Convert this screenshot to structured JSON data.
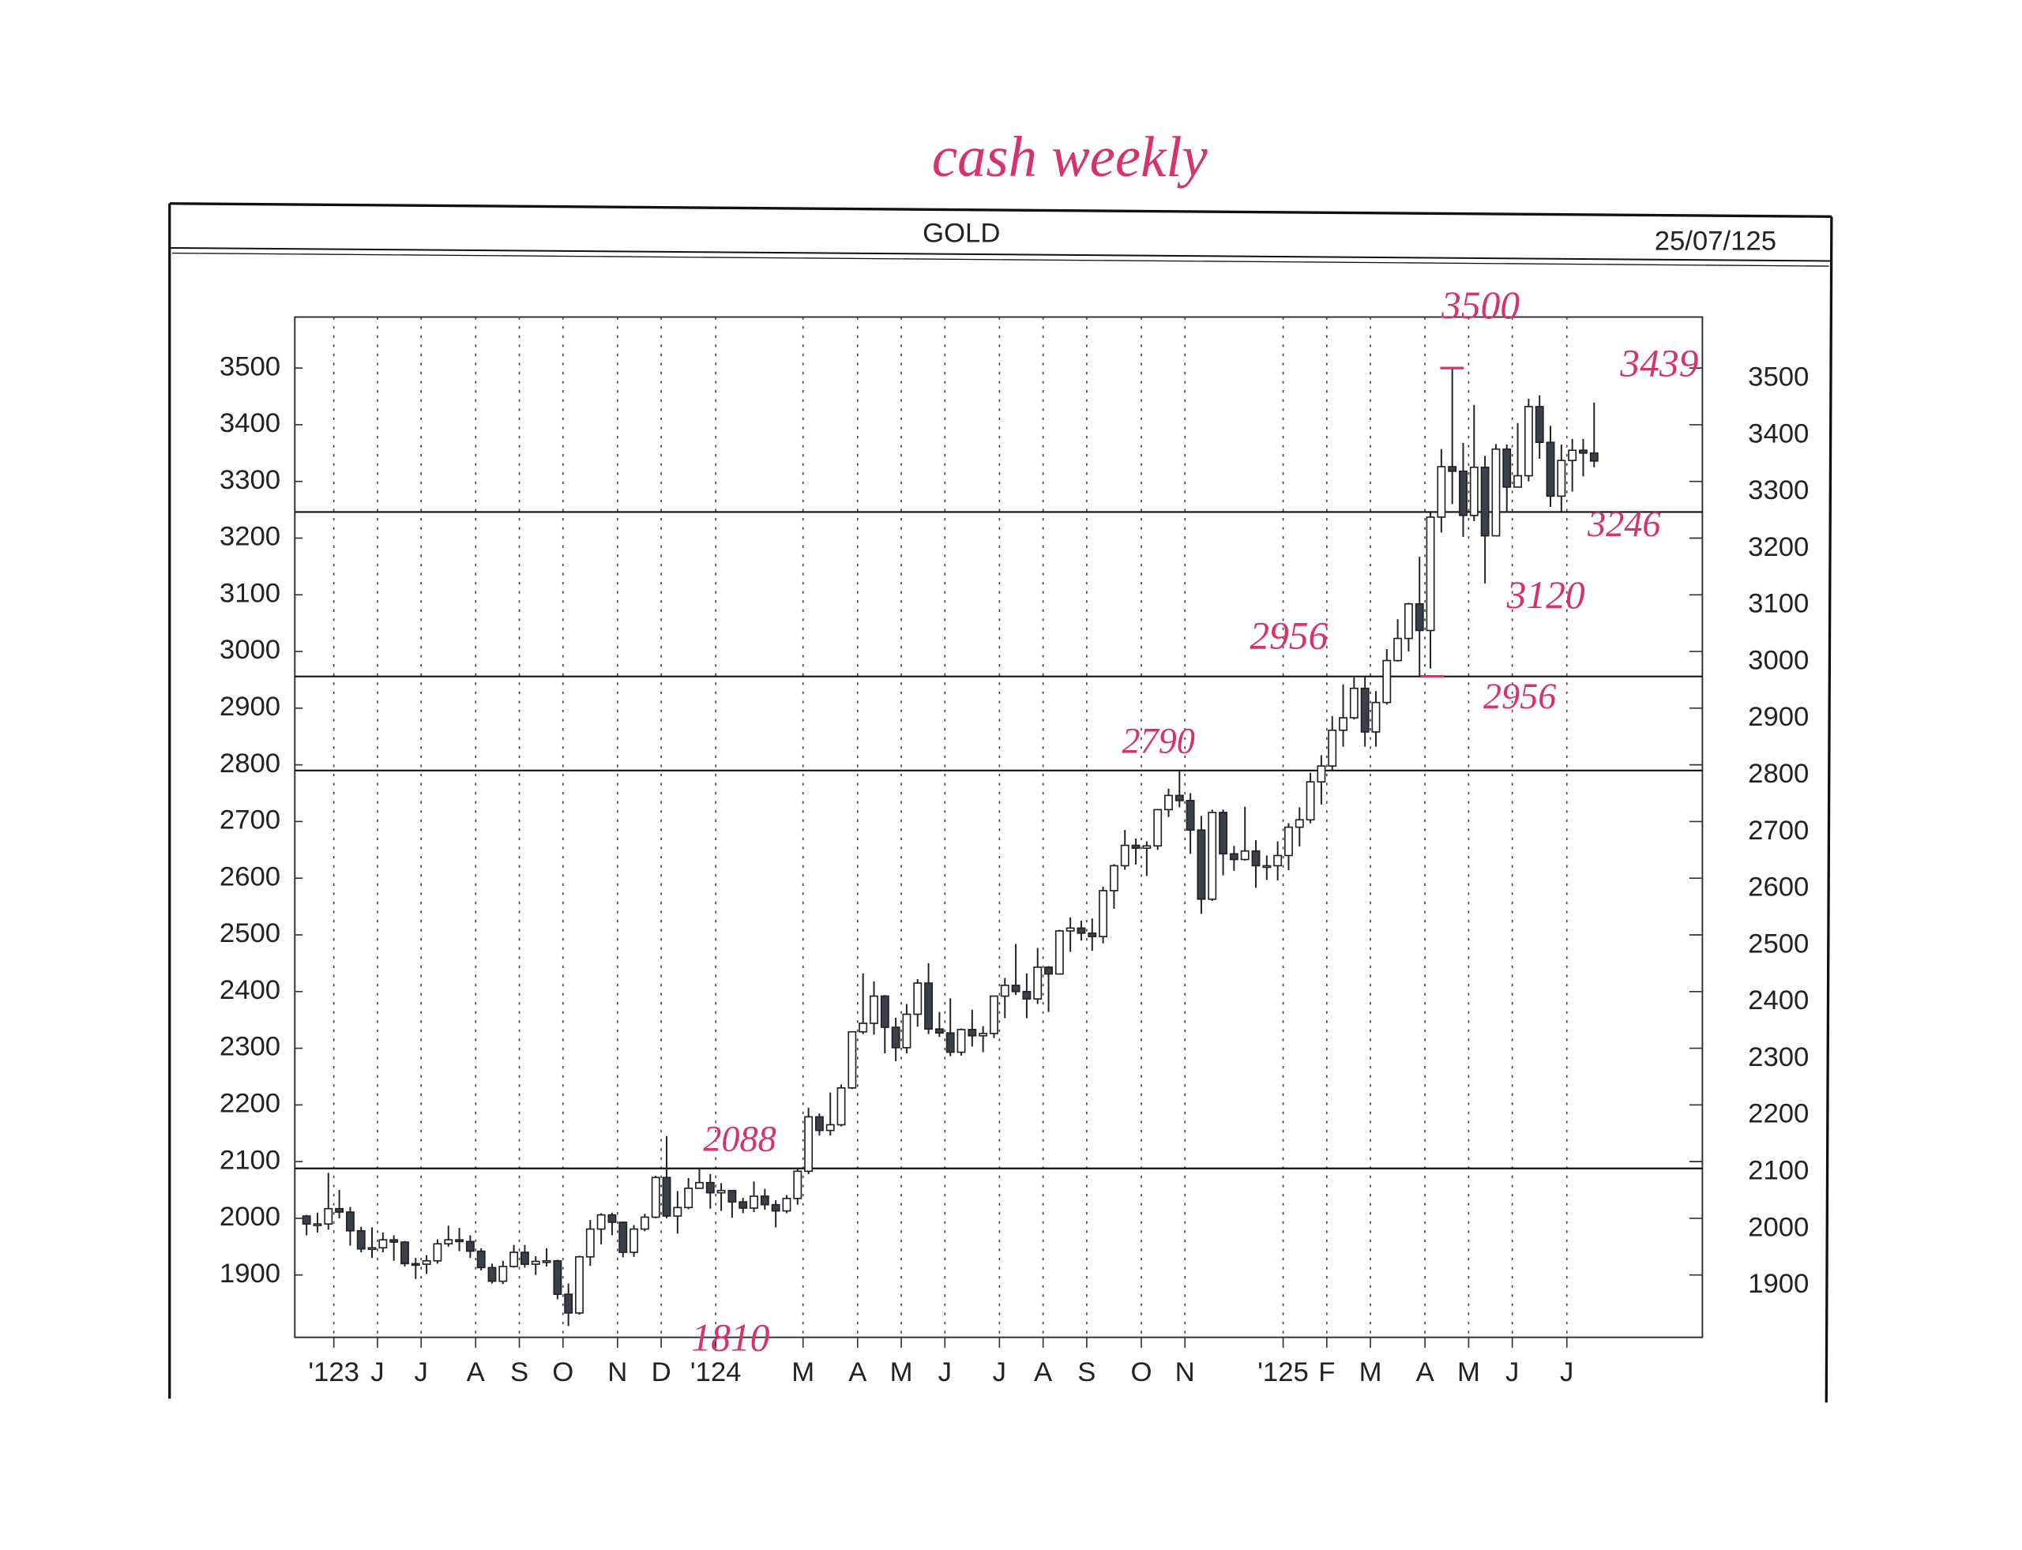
{
  "chart_data": {
    "type": "candlestick",
    "title": "GOLD",
    "date": "25/07/125",
    "note_title": "cash weekly",
    "categories": [
      null,
      null,
      "'123",
      null,
      null,
      null,
      "J",
      null,
      null,
      null,
      "J",
      null,
      null,
      null,
      null,
      "A",
      null,
      null,
      null,
      "S",
      null,
      null,
      null,
      "O",
      null,
      null,
      null,
      null,
      "N",
      null,
      null,
      null,
      "D",
      null,
      null,
      null,
      null,
      "'124",
      null,
      null,
      null,
      null,
      null,
      null,
      null,
      "M",
      null,
      null,
      null,
      null,
      "A",
      null,
      null,
      null,
      "M",
      null,
      null,
      null,
      "J",
      null,
      null,
      null,
      null,
      "J",
      null,
      null,
      null,
      "A",
      null,
      null,
      null,
      "S",
      null,
      null,
      null,
      null,
      "O",
      null,
      null,
      null,
      "N",
      null,
      null,
      null,
      null,
      null,
      null,
      null,
      null,
      "'125",
      null,
      null,
      null,
      "F",
      null,
      null,
      null,
      "M",
      null,
      null,
      null,
      null,
      "A",
      null,
      null,
      null,
      "M",
      null,
      null,
      null,
      "J",
      null,
      null,
      null,
      null,
      "J",
      null,
      null,
      null
    ],
    "open": [
      2004,
      1990,
      1990,
      2017,
      2011,
      1978,
      1946,
      1948,
      1962,
      1958,
      1920,
      1919,
      1925,
      1955,
      1962,
      1959,
      1942,
      1913,
      1889,
      1915,
      1940,
      1919,
      1924,
      1925,
      1866,
      1833,
      1932,
      1981,
      2006,
      1993,
      1940,
      1981,
      2002,
      2072,
      2004,
      2019,
      2053,
      2063,
      2045,
      2049,
      2029,
      2018,
      2039,
      2024,
      2013,
      2035,
      2083,
      2179,
      2155,
      2165,
      2230,
      2329,
      2344,
      2392,
      2337,
      2301,
      2360,
      2415,
      2334,
      2327,
      2293,
      2333,
      2322,
      2326,
      2392,
      2411,
      2400,
      2387,
      2443,
      2431,
      2507,
      2512,
      2503,
      2497,
      2578,
      2622,
      2658,
      2653,
      2657,
      2721,
      2746,
      2737,
      2685,
      2563,
      2716,
      2643,
      2633,
      2648,
      2622,
      2622,
      2640,
      2690,
      2703,
      2770,
      2798,
      2861,
      2883,
      2935,
      2858,
      2910,
      2984,
      3023,
      3084,
      3037,
      3237,
      3326,
      3318,
      3240,
      3325,
      3204,
      3357,
      3290,
      3310,
      3432,
      3369,
      3274,
      3337,
      3355,
      3350
    ],
    "high": [
      2006,
      2010,
      2080,
      2050,
      2020,
      1985,
      1984,
      1975,
      1970,
      1960,
      1930,
      1935,
      1963,
      1987,
      1983,
      1970,
      1947,
      1920,
      1925,
      1953,
      1953,
      1933,
      1947,
      1927,
      1885,
      1934,
      1997,
      2009,
      2010,
      1994,
      1988,
      2008,
      2075,
      2145,
      2048,
      2071,
      2088,
      2078,
      2062,
      2050,
      2036,
      2065,
      2052,
      2032,
      2041,
      2088,
      2195,
      2185,
      2222,
      2236,
      2330,
      2432,
      2418,
      2394,
      2354,
      2378,
      2422,
      2450,
      2364,
      2388,
      2335,
      2368,
      2339,
      2392,
      2424,
      2484,
      2432,
      2477,
      2445,
      2509,
      2531,
      2525,
      2529,
      2585,
      2625,
      2685,
      2670,
      2665,
      2722,
      2758,
      2790,
      2750,
      2710,
      2721,
      2721,
      2657,
      2726,
      2667,
      2640,
      2665,
      2697,
      2725,
      2786,
      2817,
      2886,
      2942,
      2954,
      2956,
      2930,
      3004,
      3057,
      3086,
      3167,
      3245,
      3357,
      3500,
      3368,
      3435,
      3345,
      3366,
      3365,
      3403,
      3446,
      3452,
      3398,
      3365,
      3375,
      3375,
      3439
    ],
    "low": [
      1970,
      1975,
      1980,
      2000,
      1952,
      1940,
      1930,
      1940,
      1925,
      1915,
      1893,
      1902,
      1920,
      1950,
      1942,
      1930,
      1908,
      1885,
      1884,
      1913,
      1913,
      1900,
      1915,
      1857,
      1810,
      1830,
      1916,
      1954,
      1970,
      1931,
      1932,
      1977,
      2000,
      2000,
      1973,
      2016,
      2053,
      2017,
      2013,
      2001,
      2009,
      2011,
      2015,
      1984,
      2009,
      2024,
      2078,
      2146,
      2146,
      2162,
      2228,
      2325,
      2324,
      2291,
      2277,
      2291,
      2338,
      2325,
      2320,
      2286,
      2287,
      2303,
      2293,
      2318,
      2353,
      2394,
      2353,
      2378,
      2364,
      2430,
      2470,
      2490,
      2472,
      2485,
      2546,
      2615,
      2624,
      2604,
      2650,
      2708,
      2725,
      2643,
      2537,
      2560,
      2605,
      2613,
      2631,
      2583,
      2597,
      2596,
      2614,
      2656,
      2697,
      2730,
      2790,
      2832,
      2880,
      2832,
      2832,
      2906,
      2982,
      3000,
      2956,
      2970,
      3210,
      3260,
      3202,
      3230,
      3120,
      3204,
      3245,
      3290,
      3300,
      3340,
      3255,
      3247,
      3282,
      3309,
      3325
    ],
    "close": [
      1990,
      1990,
      2017,
      2011,
      1978,
      1946,
      1948,
      1962,
      1958,
      1920,
      1919,
      1925,
      1955,
      1962,
      1959,
      1942,
      1913,
      1889,
      1915,
      1940,
      1919,
      1924,
      1925,
      1866,
      1833,
      1932,
      1981,
      2006,
      1993,
      1940,
      1981,
      2002,
      2072,
      2004,
      2019,
      2053,
      2063,
      2045,
      2049,
      2029,
      2018,
      2039,
      2024,
      2013,
      2035,
      2083,
      2179,
      2155,
      2165,
      2230,
      2329,
      2344,
      2392,
      2337,
      2301,
      2360,
      2415,
      2334,
      2327,
      2293,
      2333,
      2322,
      2326,
      2392,
      2411,
      2400,
      2387,
      2443,
      2431,
      2507,
      2512,
      2503,
      2497,
      2578,
      2622,
      2658,
      2653,
      2657,
      2721,
      2746,
      2737,
      2685,
      2563,
      2716,
      2643,
      2633,
      2648,
      2622,
      2622,
      2640,
      2690,
      2703,
      2770,
      2798,
      2861,
      2883,
      2935,
      2858,
      2910,
      2984,
      3023,
      3084,
      3037,
      3237,
      3326,
      3318,
      3240,
      3325,
      3204,
      3357,
      3290,
      3310,
      3432,
      3369,
      3274,
      3337,
      3355,
      3350,
      3336
    ],
    "up_color": "#ffffff",
    "down_color": "#3a3f4a",
    "note_color": "#d6336c",
    "ylim": [
      1790,
      3590
    ],
    "yticks": [
      1900,
      2000,
      2100,
      2200,
      2300,
      2400,
      2500,
      2600,
      2700,
      2800,
      2900,
      3000,
      3100,
      3200,
      3300,
      3400,
      3500
    ],
    "levels": [
      3246,
      2956,
      2790,
      2088
    ],
    "notes": [
      3500,
      3439,
      3120,
      2956,
      1810
    ],
    "grid": true
  }
}
